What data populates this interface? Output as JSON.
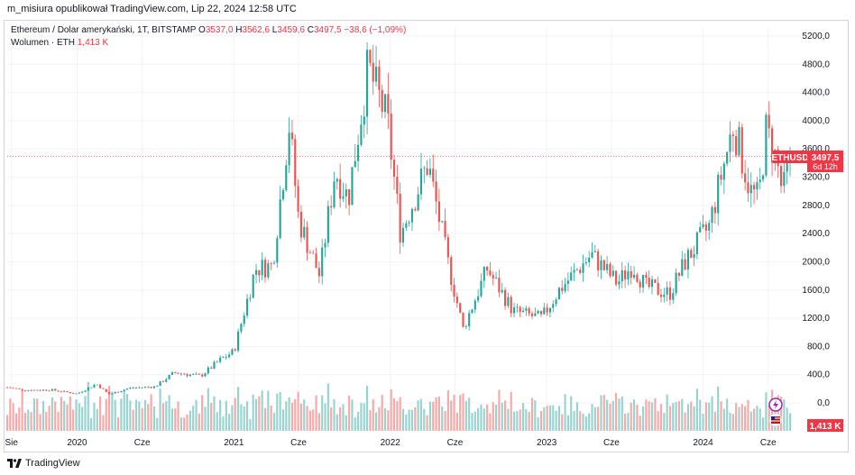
{
  "header": {
    "published_by": "m_misiura opublikował TradingView.com, Lip 22, 2024 12:58 UTC"
  },
  "legend": {
    "symbol_desc": "Ethereum / Dolar amerykański, 1T, BITSTAMP",
    "o_label": "O",
    "o_value": "3537,0",
    "h_label": "H",
    "h_value": "3562,6",
    "l_label": "L",
    "l_value": "3459,6",
    "c_label": "C",
    "c_value": "3497,5",
    "change": "−38,6 (−1,09%)",
    "volume_label": "Wolumen · ETH",
    "volume_value": "1,413 K"
  },
  "price_label": {
    "ticker": "ETHUSD",
    "price": "3497,5",
    "countdown": "6d 12h"
  },
  "volume_badge": "1,413 K",
  "footer": {
    "brand": "TradingView"
  },
  "colors": {
    "up": "#26a69a",
    "down": "#ef5350",
    "up_vol": "#98d4cf",
    "down_vol": "#f7a9a7",
    "grid": "#f0f3fa",
    "accent": "#f23645"
  },
  "chart_data": {
    "type": "candlestick",
    "title": "Ethereum / Dolar amerykański, 1T, BITSTAMP",
    "yaxis_ticks": [
      "5200,0",
      "4800,0",
      "4400,0",
      "4000,0",
      "3600,0",
      "3200,0",
      "2800,0",
      "2400,0",
      "2000,0",
      "1600,0",
      "1200,0",
      "800,0",
      "400,0",
      "0,0"
    ],
    "ylim": [
      0,
      5400
    ],
    "xaxis_ticks": [
      "Sie",
      "2020",
      "Cze",
      "2021",
      "Cze",
      "2022",
      "Cze",
      "2023",
      "Cze",
      "2024",
      "Cze"
    ],
    "x_start": "2019-07-22",
    "x_end": "2024-07-22",
    "last_price": 3497.5,
    "series_close_anchors": [
      [
        "2019-07-22",
        220
      ],
      [
        "2019-09-01",
        180
      ],
      [
        "2019-11-01",
        185
      ],
      [
        "2020-01-01",
        130
      ],
      [
        "2020-02-15",
        270
      ],
      [
        "2020-03-15",
        120
      ],
      [
        "2020-05-01",
        210
      ],
      [
        "2020-07-01",
        230
      ],
      [
        "2020-08-15",
        430
      ],
      [
        "2020-10-15",
        380
      ],
      [
        "2020-11-30",
        610
      ],
      [
        "2021-01-01",
        730
      ],
      [
        "2021-02-20",
        1900
      ],
      [
        "2021-04-01",
        1950
      ],
      [
        "2021-05-10",
        3950
      ],
      [
        "2021-06-01",
        2600
      ],
      [
        "2021-07-20",
        1800
      ],
      [
        "2021-08-25",
        3300
      ],
      [
        "2021-09-25",
        2900
      ],
      [
        "2021-11-10",
        4750
      ],
      [
        "2021-12-25",
        4000
      ],
      [
        "2022-01-25",
        2400
      ],
      [
        "2022-03-30",
        3400
      ],
      [
        "2022-05-15",
        2000
      ],
      [
        "2022-06-20",
        1050
      ],
      [
        "2022-08-15",
        1900
      ],
      [
        "2022-10-15",
        1300
      ],
      [
        "2022-12-20",
        1200
      ],
      [
        "2023-01-30",
        1600
      ],
      [
        "2023-04-15",
        2100
      ],
      [
        "2023-06-15",
        1700
      ],
      [
        "2023-07-20",
        1950
      ],
      [
        "2023-08-20",
        1650
      ],
      [
        "2023-10-15",
        1550
      ],
      [
        "2023-11-20",
        2000
      ],
      [
        "2024-01-15",
        2500
      ],
      [
        "2024-03-12",
        3950
      ],
      [
        "2024-04-20",
        3000
      ],
      [
        "2024-05-10",
        2900
      ],
      [
        "2024-05-27",
        3850
      ],
      [
        "2024-06-20",
        3450
      ],
      [
        "2024-07-05",
        2950
      ],
      [
        "2024-07-22",
        3497.5
      ]
    ]
  }
}
